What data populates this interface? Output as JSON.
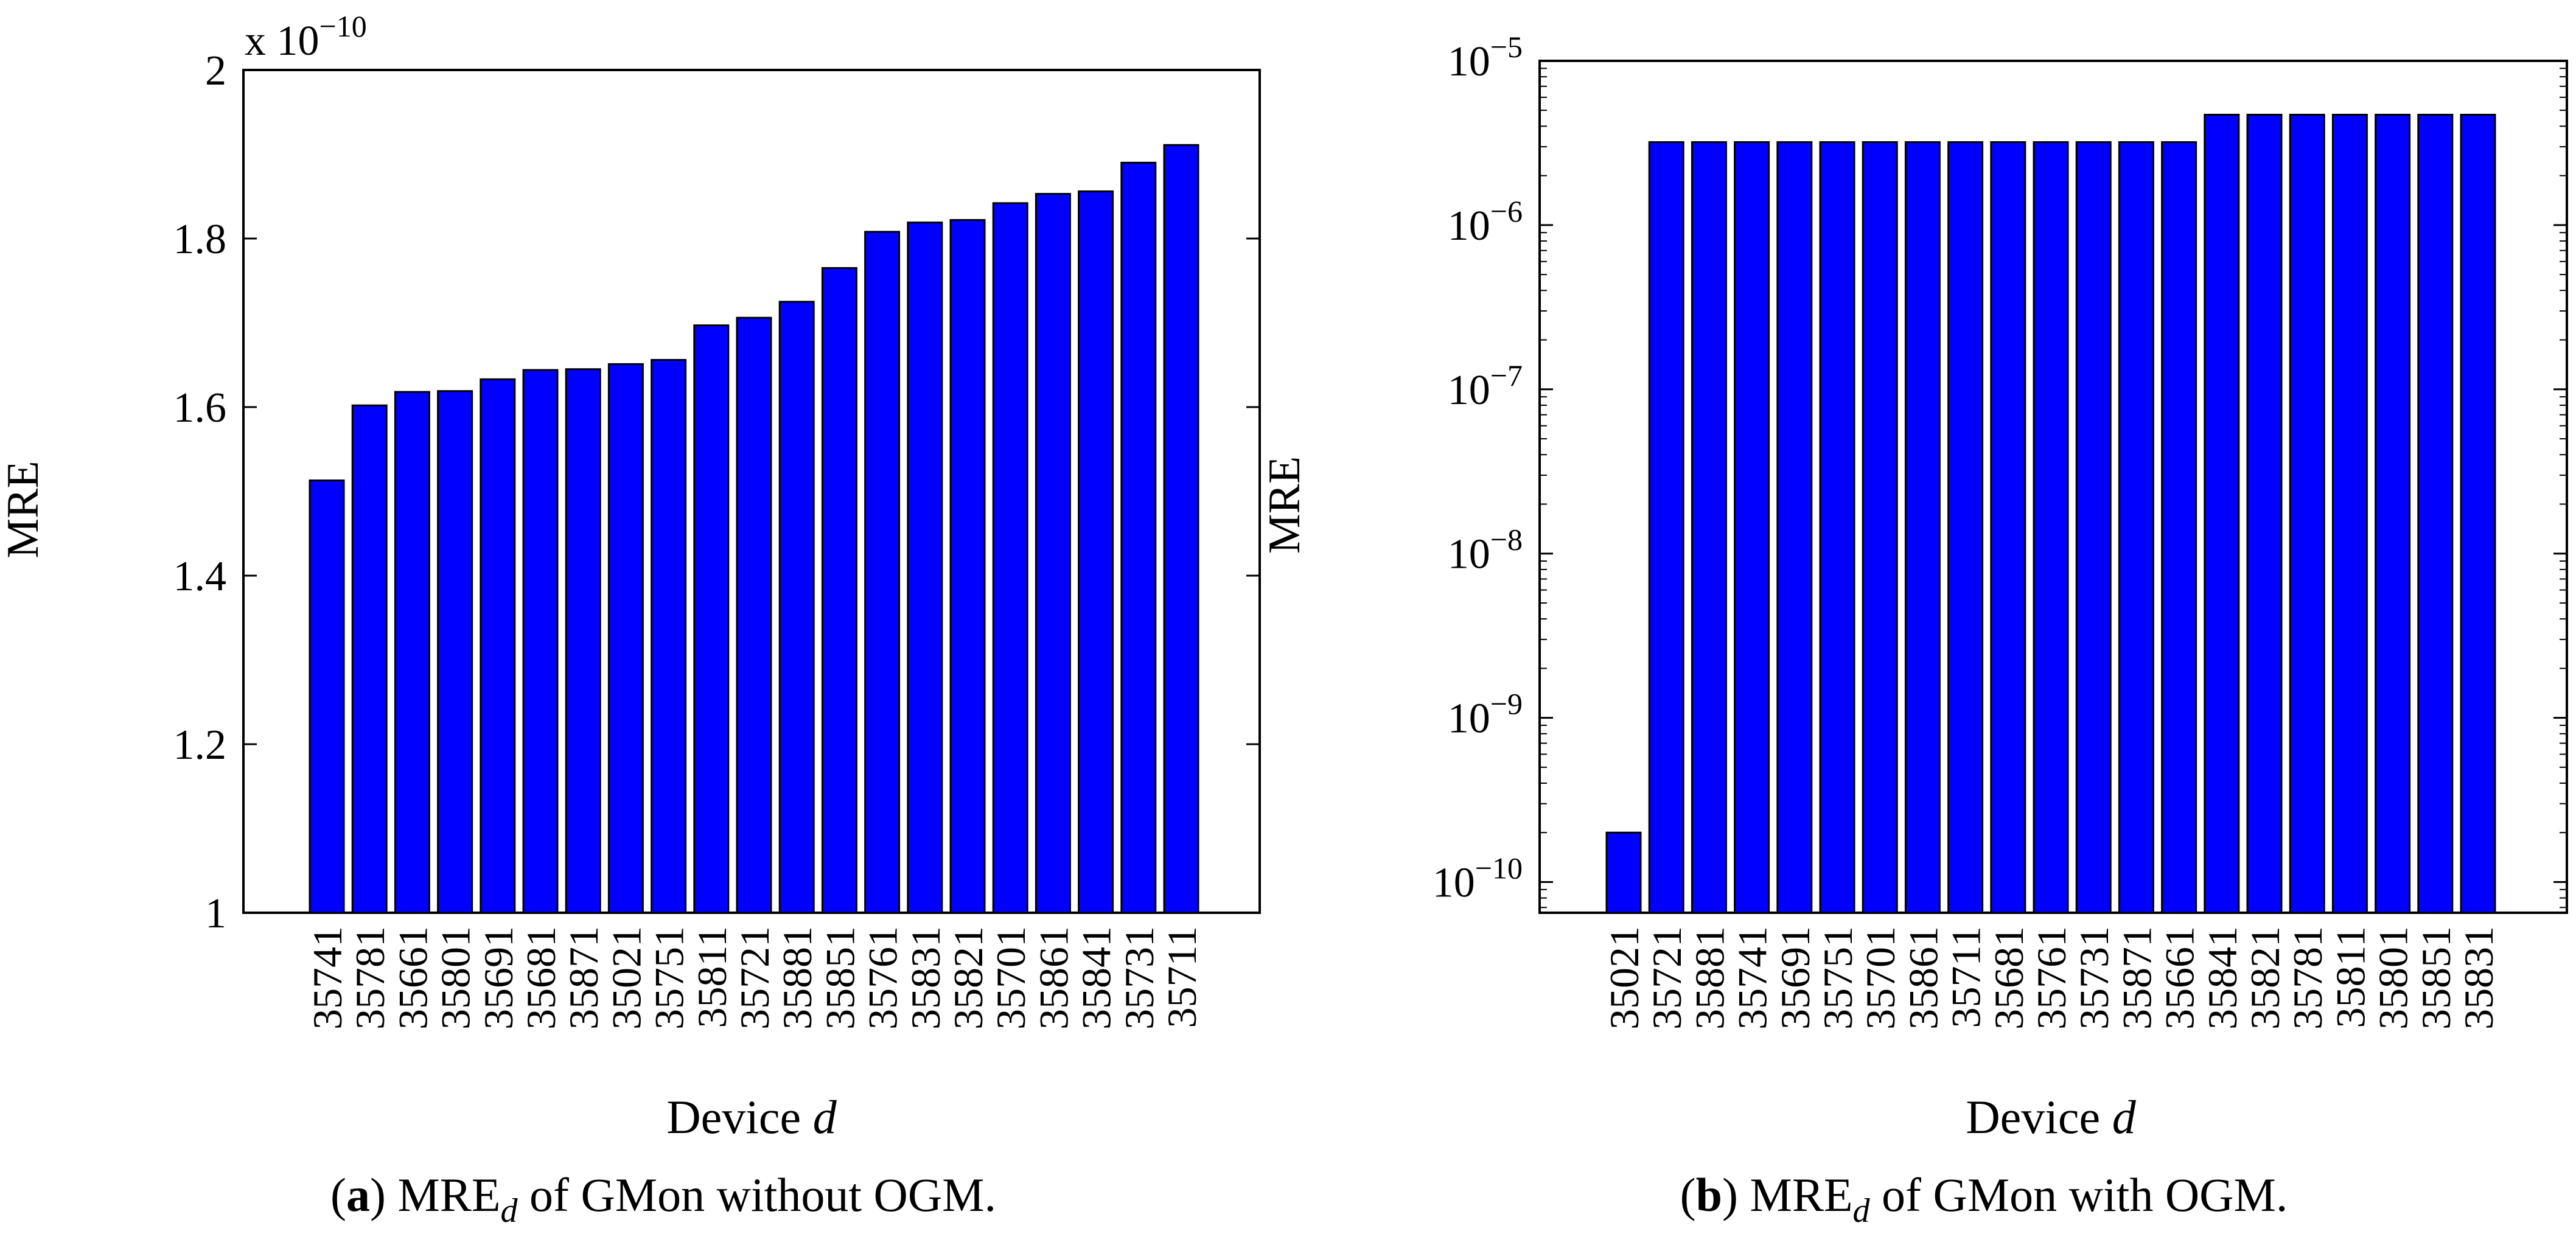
{
  "colors": {
    "bar_fill": "#0000ff",
    "bar_stroke": "#000000",
    "axis": "#000000"
  },
  "chart_data": [
    {
      "type": "bar",
      "panel_label": "a",
      "caption": "MRE_d of GMon without OGM.",
      "caption_parts": {
        "pre": "MRE",
        "sub": "d",
        "post": " of GMon without OGM."
      },
      "ylabel": "MRE",
      "xlabel_parts": {
        "text": "Device ",
        "italic": "d"
      },
      "yscale": "linear",
      "ylim": [
        1.0,
        2.0
      ],
      "yticks": [
        1,
        1.2,
        1.4,
        1.6,
        1.8,
        2
      ],
      "ytick_labels": [
        "1",
        "1.2",
        "1.4",
        "1.6",
        "1.8",
        "2"
      ],
      "y_multiplier_parts": {
        "base": "x 10",
        "exp": "−10"
      },
      "categories": [
        "35741",
        "35781",
        "35661",
        "35801",
        "35691",
        "35681",
        "35871",
        "35021",
        "35751",
        "35811",
        "35721",
        "35881",
        "35851",
        "35761",
        "35831",
        "35821",
        "35701",
        "35861",
        "35841",
        "35731",
        "35711"
      ],
      "values": [
        1.513,
        1.602,
        1.618,
        1.619,
        1.633,
        1.644,
        1.645,
        1.651,
        1.656,
        1.697,
        1.706,
        1.725,
        1.765,
        1.808,
        1.819,
        1.822,
        1.842,
        1.853,
        1.856,
        1.89,
        1.911
      ]
    },
    {
      "type": "bar",
      "panel_label": "b",
      "caption": "MRE_d of GMon with OGM.",
      "caption_parts": {
        "pre": "MRE",
        "sub": "d",
        "post": " of GMon with OGM."
      },
      "ylabel": "MRE",
      "xlabel_parts": {
        "text": "Device ",
        "italic": "d"
      },
      "yscale": "log",
      "ylim": [
        6.5e-11,
        1e-05
      ],
      "yticks": [
        1e-10,
        1e-09,
        1e-08,
        1e-07,
        1e-06,
        1e-05
      ],
      "ytick_labels": [
        {
          "base": "10",
          "exp": "−10"
        },
        {
          "base": "10",
          "exp": "−9"
        },
        {
          "base": "10",
          "exp": "−8"
        },
        {
          "base": "10",
          "exp": "−7"
        },
        {
          "base": "10",
          "exp": "−6"
        },
        {
          "base": "10",
          "exp": "−5"
        }
      ],
      "categories": [
        "35021",
        "35721",
        "35881",
        "35741",
        "35691",
        "35751",
        "35701",
        "35861",
        "35711",
        "35681",
        "35761",
        "35731",
        "35871",
        "35661",
        "35841",
        "35821",
        "35781",
        "35811",
        "35801",
        "35851",
        "35831"
      ],
      "values": [
        2e-10,
        3.2e-06,
        3.2e-06,
        3.2e-06,
        3.2e-06,
        3.2e-06,
        3.2e-06,
        3.2e-06,
        3.2e-06,
        3.2e-06,
        3.2e-06,
        3.2e-06,
        3.2e-06,
        3.2e-06,
        4.7e-06,
        4.7e-06,
        4.7e-06,
        4.7e-06,
        4.7e-06,
        4.7e-06,
        4.7e-06
      ]
    }
  ]
}
